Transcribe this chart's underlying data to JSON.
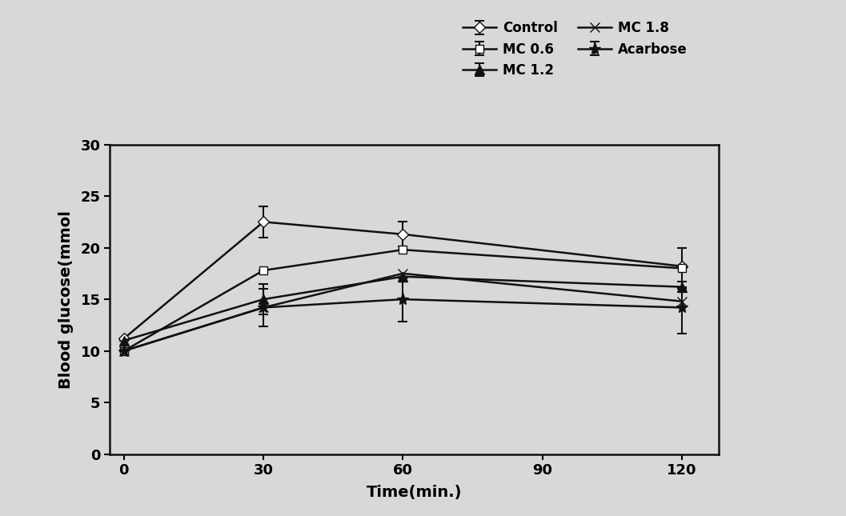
{
  "x": [
    0,
    30,
    60,
    120
  ],
  "series": [
    {
      "label": "Control",
      "y": [
        11.2,
        22.5,
        21.3,
        18.2
      ],
      "yerr": [
        0.0,
        1.5,
        1.2,
        0.0
      ],
      "marker": "D",
      "markersize": 7,
      "linestyle": "-",
      "color": "#111111",
      "markerfacecolor": "white",
      "markeredgecolor": "#111111"
    },
    {
      "label": "MC 0.6",
      "y": [
        10.0,
        17.8,
        19.8,
        18.0
      ],
      "yerr": [
        0.0,
        0.0,
        0.0,
        2.0
      ],
      "marker": "s",
      "markersize": 7,
      "linestyle": "-",
      "color": "#111111",
      "markerfacecolor": "white",
      "markeredgecolor": "#111111"
    },
    {
      "label": "MC 1.2",
      "y": [
        11.0,
        15.0,
        17.2,
        16.2
      ],
      "yerr": [
        0.0,
        1.5,
        0.0,
        0.0
      ],
      "marker": "^",
      "markersize": 8,
      "linestyle": "-",
      "color": "#111111",
      "markerfacecolor": "#111111",
      "markeredgecolor": "#111111"
    },
    {
      "label": "MC 1.8",
      "y": [
        10.0,
        14.2,
        17.5,
        14.8
      ],
      "yerr": [
        0.0,
        0.0,
        0.0,
        0.0
      ],
      "marker": "x",
      "markersize": 8,
      "linestyle": "-",
      "color": "#111111",
      "markerfacecolor": "#111111",
      "markeredgecolor": "#111111"
    },
    {
      "label": "Acarbose",
      "y": [
        10.0,
        14.2,
        15.0,
        14.2
      ],
      "yerr": [
        0.0,
        1.8,
        2.2,
        2.5
      ],
      "marker": "*",
      "markersize": 11,
      "linestyle": "-",
      "color": "#111111",
      "markerfacecolor": "#111111",
      "markeredgecolor": "#111111"
    }
  ],
  "xlabel": "Time(min.)",
  "ylabel": "Blood glucose(mmol",
  "xlim": [
    -3,
    128
  ],
  "ylim": [
    0,
    30
  ],
  "xticks": [
    0,
    30,
    60,
    90,
    120
  ],
  "yticks": [
    0,
    5,
    10,
    15,
    20,
    25,
    30
  ],
  "background_color": "#d8d8d8",
  "legend_fontsize": 12,
  "axis_fontsize": 14,
  "tick_fontsize": 13
}
